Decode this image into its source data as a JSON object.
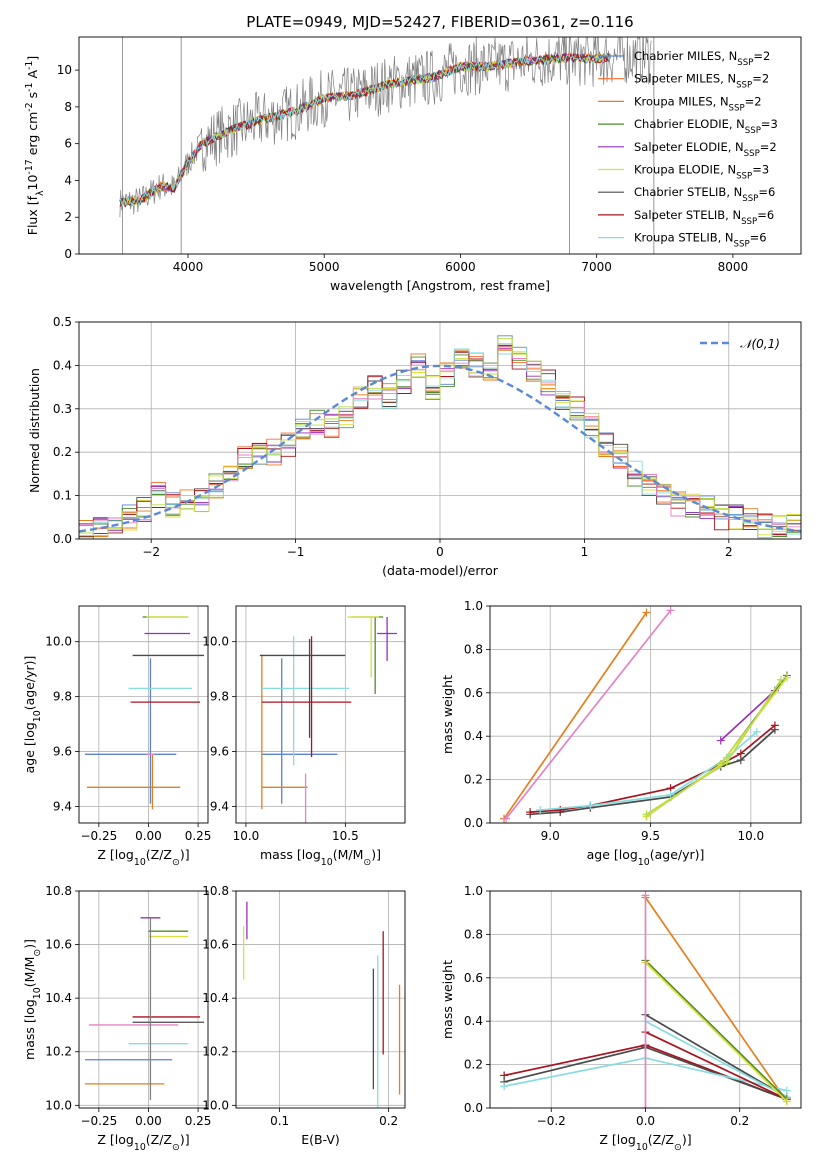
{
  "figure_title": "PLATE=0949, MJD=52427, FIBERID=0361, z=0.116",
  "colors": {
    "Chabrier MILES": "#5a83cc",
    "Salpeter MILES": "#ff6a2a",
    "Kroupa MILES": "#e57e1c",
    "Chabrier ELODIE": "#4f8a2d",
    "Salpeter ELODIE": "#9a2fb8",
    "Kroupa ELODIE": "#d9df3c",
    "Chabrier STELIB": "#4a4a4a",
    "Salpeter STELIB": "#a8141f",
    "Kroupa STELIB": "#86dcdf",
    "data_gray": "#808080",
    "normal_curve": "#5a8ad6",
    "extra_pink": "#e483c4",
    "extra_lime": "#b8dc4a"
  },
  "chart_data": [
    {
      "id": "spectrum",
      "type": "line",
      "xlabel": "wavelength [Angstrom, rest frame]",
      "ylabel": "Flux [f$_λ$10$^{-17}$ erg cm$^{-2}$ s$^{-1}$ A$^{-1}$]",
      "xlim": [
        3200,
        8500
      ],
      "ylim": [
        0,
        11.8
      ],
      "xticks": [
        4000,
        5000,
        6000,
        7000,
        8000
      ],
      "yticks": [
        0,
        2,
        4,
        6,
        8,
        10
      ],
      "grid": false,
      "legend_position": "top-right",
      "series_names": [
        "Chabrier MILES, N$_{SSP}$=2",
        "Salpeter MILES, N$_{SSP}$=2",
        "Kroupa MILES, N$_{SSP}$=2",
        "Chabrier ELODIE, N$_{SSP}$=3",
        "Salpeter ELODIE, N$_{SSP}$=2",
        "Kroupa ELODIE, N$_{SSP}$=3",
        "Chabrier STELIB, N$_{SSP}$=6",
        "Salpeter STELIB, N$_{SSP}$=6",
        "Kroupa STELIB, N$_{SSP}$=6"
      ],
      "series_keys": [
        "Chabrier MILES",
        "Salpeter MILES",
        "Kroupa MILES",
        "Chabrier ELODIE",
        "Salpeter ELODIE",
        "Kroupa ELODIE",
        "Chabrier STELIB",
        "Salpeter STELIB",
        "Kroupa STELIB"
      ],
      "continuum": {
        "x": [
          3500,
          3650,
          3800,
          3900,
          4000,
          4100,
          4300,
          4500,
          4800,
          5000,
          5200,
          5500,
          5800,
          6000,
          6200,
          6500,
          6800,
          7000,
          7200,
          7400
        ],
        "y": [
          2.8,
          2.9,
          3.7,
          3.6,
          5.0,
          6.0,
          6.7,
          7.2,
          7.8,
          8.5,
          8.6,
          9.3,
          9.6,
          10.2,
          10.2,
          10.5,
          10.7,
          10.6,
          10.8,
          10.8
        ]
      },
      "spike_x": [
        3520,
        3950,
        6800,
        7420
      ],
      "data_end_x": 7400
    },
    {
      "id": "residuals",
      "type": "histogram",
      "xlabel": "(data-model)/error",
      "ylabel": "Normed distribution",
      "xlim": [
        -2.5,
        2.5
      ],
      "ylim": [
        0,
        0.5
      ],
      "xticks": [
        -2,
        -1,
        0,
        1,
        2
      ],
      "yticks": [
        0.0,
        0.1,
        0.2,
        0.3,
        0.4,
        0.5
      ],
      "grid": true,
      "legend_position": "top-right",
      "reference_curve": {
        "name": "$\\mathcal{N}(0,1)$",
        "mean": 0,
        "sigma": 1
      },
      "bin_width": 0.1,
      "bin_start": -2.5,
      "base_profile": [
        0.03,
        0.035,
        0.04,
        0.05,
        0.07,
        0.1,
        0.08,
        0.09,
        0.09,
        0.12,
        0.15,
        0.19,
        0.2,
        0.2,
        0.22,
        0.25,
        0.27,
        0.26,
        0.28,
        0.32,
        0.35,
        0.33,
        0.36,
        0.4,
        0.35,
        0.38,
        0.41,
        0.4,
        0.38,
        0.44,
        0.42,
        0.38,
        0.36,
        0.32,
        0.3,
        0.26,
        0.22,
        0.19,
        0.15,
        0.12,
        0.1,
        0.08,
        0.08,
        0.07,
        0.05,
        0.05,
        0.04,
        0.03,
        0.03,
        0.03
      ]
    },
    {
      "id": "age_vs_Z",
      "type": "errorbar",
      "xlabel": "Z [log$_{10}$(Z/Z$_\\odot$)]",
      "ylabel": "age  [log$_{10}$(age/yr)]",
      "xlim": [
        -0.35,
        0.3
      ],
      "ylim": [
        9.34,
        10.13
      ],
      "xticks": [
        -0.25,
        0.0,
        0.25
      ],
      "yticks": [
        9.4,
        9.6,
        9.8,
        10.0
      ],
      "grid": true,
      "points": [
        {
          "color": "Chabrier MILES",
          "x": 0.01,
          "y": 9.59,
          "xerr": [
            0.33,
            0.13
          ],
          "yerr": [
            0.18,
            0.35
          ]
        },
        {
          "color": "Kroupa MILES",
          "x": 0.02,
          "y": 9.47,
          "xerr": [
            0.33,
            0.14
          ],
          "yerr": [
            0.08,
            0.12
          ]
        },
        {
          "color": "extra_pink",
          "x": 0.01,
          "y": 9.59,
          "xerr": [
            0.02,
            0.02
          ],
          "yerr": [
            0.0,
            0.0
          ]
        },
        {
          "color": "Kroupa STELIB",
          "x": 0.0,
          "y": 9.83,
          "xerr": [
            0.1,
            0.22
          ],
          "yerr": [
            0.0,
            0.0
          ]
        },
        {
          "color": "Salpeter STELIB",
          "x": 0.01,
          "y": 9.78,
          "xerr": [
            0.1,
            0.25
          ],
          "yerr": [
            0.0,
            0.0
          ]
        },
        {
          "color": "Chabrier STELIB",
          "x": 0.0,
          "y": 9.95,
          "xerr": [
            0.08,
            0.28
          ],
          "yerr": [
            0.0,
            0.0
          ]
        },
        {
          "color": "Salpeter ELODIE",
          "x": 0.01,
          "y": 10.03,
          "xerr": [
            0.03,
            0.2
          ],
          "yerr": [
            0.0,
            0.0
          ]
        },
        {
          "color": "Chabrier ELODIE",
          "x": 0.0,
          "y": 10.09,
          "xerr": [
            0.03,
            0.2
          ],
          "yerr": [
            0.0,
            0.0
          ]
        },
        {
          "color": "Kroupa ELODIE",
          "x": 0.02,
          "y": 10.09,
          "xerr": [
            0.03,
            0.18
          ],
          "yerr": [
            0.0,
            0.0
          ]
        }
      ]
    },
    {
      "id": "age_vs_mass",
      "type": "errorbar",
      "xlabel": "mass [log$_{10}$(M/M$_\\odot$)]",
      "ylabel": "",
      "xlim": [
        9.95,
        10.8
      ],
      "ylim": [
        9.34,
        10.13
      ],
      "xticks": [
        10.0,
        10.5
      ],
      "yticks": [
        9.4,
        9.6,
        9.8,
        10.0
      ],
      "grid": true,
      "points": [
        {
          "color": "Chabrier MILES",
          "x": 10.18,
          "y": 9.59,
          "xerr": [
            0.1,
            0.28
          ],
          "yerr": [
            0.18,
            0.35
          ]
        },
        {
          "color": "Kroupa MILES",
          "x": 10.08,
          "y": 9.47,
          "xerr": [
            0.0,
            0.23
          ],
          "yerr": [
            0.08,
            0.48
          ]
        },
        {
          "color": "Kroupa STELIB",
          "x": 10.24,
          "y": 9.83,
          "xerr": [
            0.16,
            0.28
          ],
          "yerr": [
            0.28,
            0.19
          ]
        },
        {
          "color": "extra_pink",
          "x": 10.3,
          "y": 9.52,
          "xerr": [
            0.0,
            0.0
          ],
          "yerr": [
            0.18,
            0.0
          ]
        },
        {
          "color": "Salpeter STELIB",
          "x": 10.33,
          "y": 9.78,
          "xerr": [
            0.25,
            0.2
          ],
          "yerr": [
            0.2,
            0.24
          ]
        },
        {
          "color": "Chabrier STELIB",
          "x": 10.32,
          "y": 9.95,
          "xerr": [
            0.25,
            0.18
          ],
          "yerr": [
            0.3,
            0.06
          ]
        },
        {
          "color": "Chabrier ELODIE",
          "x": 10.65,
          "y": 10.09,
          "xerr": [
            0.12,
            0.04
          ],
          "yerr": [
            0.28,
            0.0
          ]
        },
        {
          "color": "Kroupa ELODIE",
          "x": 10.63,
          "y": 10.09,
          "xerr": [
            0.12,
            0.04
          ],
          "yerr": [
            0.22,
            0.0
          ]
        },
        {
          "color": "Salpeter ELODIE",
          "x": 10.71,
          "y": 10.03,
          "xerr": [
            0.05,
            0.05
          ],
          "yerr": [
            0.1,
            0.06
          ]
        }
      ]
    },
    {
      "id": "weight_vs_age",
      "type": "line",
      "xlabel": "age  [log$_{10}$(age/yr)]",
      "ylabel": "mass weight",
      "xlim": [
        8.7,
        10.25
      ],
      "ylim": [
        0.0,
        1.0
      ],
      "xticks": [
        9.0,
        9.5,
        10.0
      ],
      "yticks": [
        0.0,
        0.2,
        0.4,
        0.6,
        0.8,
        1.0
      ],
      "grid": true,
      "series": [
        {
          "color": "Kroupa MILES",
          "x": [
            8.77,
            9.48
          ],
          "y": [
            0.02,
            0.97
          ]
        },
        {
          "color": "extra_pink",
          "x": [
            8.78,
            9.6
          ],
          "y": [
            0.02,
            0.98
          ]
        },
        {
          "color": "Chabrier STELIB",
          "x": [
            8.9,
            9.05,
            9.2,
            9.6,
            9.85,
            9.95,
            10.12
          ],
          "y": [
            0.04,
            0.05,
            0.07,
            0.12,
            0.26,
            0.29,
            0.43
          ]
        },
        {
          "color": "Salpeter STELIB",
          "x": [
            8.9,
            9.05,
            9.2,
            9.6,
            9.85,
            9.95,
            10.12
          ],
          "y": [
            0.05,
            0.06,
            0.08,
            0.16,
            0.27,
            0.32,
            0.45
          ]
        },
        {
          "color": "Kroupa STELIB",
          "x": [
            8.95,
            9.2,
            9.6,
            9.88,
            10.03
          ],
          "y": [
            0.06,
            0.08,
            0.13,
            0.3,
            0.42
          ]
        },
        {
          "color": "Salpeter ELODIE",
          "x": [
            9.85,
            10.12
          ],
          "y": [
            0.38,
            0.61
          ]
        },
        {
          "color": "Chabrier ELODIE",
          "x": [
            9.48,
            9.85,
            10.18
          ],
          "y": [
            0.03,
            0.27,
            0.68
          ]
        },
        {
          "color": "Kroupa ELODIE",
          "x": [
            9.48,
            9.85,
            10.18
          ],
          "y": [
            0.03,
            0.27,
            0.67
          ]
        },
        {
          "color": "extra_lime",
          "x": [
            9.48,
            9.88,
            10.15
          ],
          "y": [
            0.04,
            0.28,
            0.66
          ]
        }
      ]
    },
    {
      "id": "mass_vs_Z",
      "type": "errorbar",
      "xlabel": "Z [log$_{10}$(Z/Z$_\\odot$)]",
      "ylabel": "mass [log$_{10}$(M/M$_\\odot$)]",
      "xlim": [
        -0.35,
        0.3
      ],
      "ylim": [
        9.99,
        10.8
      ],
      "xticks": [
        -0.25,
        0.0,
        0.25
      ],
      "yticks": [
        10.0,
        10.2,
        10.4,
        10.6,
        10.8
      ],
      "grid": true,
      "points": [
        {
          "color": "Kroupa MILES",
          "x": -0.12,
          "y": 10.08,
          "xerr": [
            0.2,
            0.2
          ],
          "yerr": [
            0.0,
            0.0
          ]
        },
        {
          "color": "Chabrier MILES",
          "x": -0.1,
          "y": 10.17,
          "xerr": [
            0.22,
            0.22
          ],
          "yerr": [
            0.0,
            0.0
          ]
        },
        {
          "color": "Kroupa STELIB",
          "x": 0.05,
          "y": 10.23,
          "xerr": [
            0.15,
            0.15
          ],
          "yerr": [
            0.0,
            0.0
          ]
        },
        {
          "color": "extra_pink",
          "x": -0.05,
          "y": 10.3,
          "xerr": [
            0.25,
            0.2
          ],
          "yerr": [
            0.0,
            0.0
          ]
        },
        {
          "color": "Chabrier STELIB",
          "x": 0.1,
          "y": 10.31,
          "xerr": [
            0.18,
            0.18
          ],
          "yerr": [
            0.0,
            0.0
          ]
        },
        {
          "color": "Salpeter STELIB",
          "x": 0.09,
          "y": 10.33,
          "xerr": [
            0.17,
            0.17
          ],
          "yerr": [
            0.0,
            0.0
          ]
        },
        {
          "color": "Kroupa ELODIE",
          "x": 0.1,
          "y": 10.63,
          "xerr": [
            0.1,
            0.1
          ],
          "yerr": [
            0.0,
            0.0
          ]
        },
        {
          "color": "Chabrier ELODIE",
          "x": 0.1,
          "y": 10.65,
          "xerr": [
            0.1,
            0.1
          ],
          "yerr": [
            0.0,
            0.0
          ]
        },
        {
          "color": "Salpeter ELODIE",
          "x": 0.01,
          "y": 10.7,
          "xerr": [
            0.05,
            0.05
          ],
          "yerr": [
            0.0,
            0.0
          ]
        },
        {
          "color": "data_gray",
          "x": 0.01,
          "y": 10.3,
          "xerr": [
            0.0,
            0.0
          ],
          "yerr": [
            0.28,
            0.4
          ]
        }
      ]
    },
    {
      "id": "mass_vs_ebv",
      "type": "errorbar",
      "xlabel": "E(B-V)",
      "ylabel": "",
      "xlim": [
        0.06,
        0.215
      ],
      "ylim": [
        9.99,
        10.8
      ],
      "xticks": [
        0.1,
        0.2
      ],
      "yticks": [
        10.0,
        10.2,
        10.4,
        10.6,
        10.8
      ],
      "grid": true,
      "points": [
        {
          "color": "Kroupa ELODIE",
          "x": 0.067,
          "y": 10.57,
          "yerr": [
            0.1,
            0.1
          ]
        },
        {
          "color": "Salpeter ELODIE",
          "x": 0.07,
          "y": 10.69,
          "yerr": [
            0.07,
            0.07
          ]
        },
        {
          "color": "Chabrier STELIB",
          "x": 0.186,
          "y": 10.29,
          "yerr": [
            0.23,
            0.22
          ]
        },
        {
          "color": "Kroupa STELIB",
          "x": 0.19,
          "y": 10.26,
          "yerr": [
            0.28,
            0.3
          ]
        },
        {
          "color": "Salpeter STELIB",
          "x": 0.195,
          "y": 10.37,
          "yerr": [
            0.18,
            0.28
          ]
        },
        {
          "color": "Kroupa MILES",
          "x": 0.21,
          "y": 10.24,
          "yerr": [
            0.2,
            0.21
          ]
        }
      ]
    },
    {
      "id": "weight_vs_Z",
      "type": "line",
      "xlabel": "Z [log$_{10}$(Z/Z$_\\odot$)]",
      "ylabel": "mass weight",
      "xlim": [
        -0.33,
        0.33
      ],
      "ylim": [
        0.0,
        1.0
      ],
      "xticks": [
        -0.2,
        0.0,
        0.2
      ],
      "yticks": [
        0.0,
        0.2,
        0.4,
        0.6,
        0.8,
        1.0
      ],
      "grid": true,
      "series": [
        {
          "color": "Kroupa MILES",
          "x": [
            0.0,
            0.3
          ],
          "y": [
            0.97,
            0.03
          ]
        },
        {
          "color": "Salpeter STELIB",
          "x": [
            -0.3,
            0.0,
            0.3
          ],
          "y": [
            0.15,
            0.29,
            0.04
          ]
        },
        {
          "color": "Chabrier STELIB",
          "x": [
            -0.3,
            0.0,
            0.3
          ],
          "y": [
            0.12,
            0.28,
            0.04
          ]
        },
        {
          "color": "Kroupa STELIB",
          "x": [
            -0.3,
            0.0,
            0.3
          ],
          "y": [
            0.1,
            0.23,
            0.08
          ]
        },
        {
          "color": "Chabrier STELIB",
          "x": [
            0.0,
            0.3
          ],
          "y": [
            0.43,
            0.05
          ]
        },
        {
          "color": "Kroupa STELIB",
          "x": [
            0.0,
            0.3
          ],
          "y": [
            0.4,
            0.05
          ]
        },
        {
          "color": "Salpeter STELIB",
          "x": [
            0.0,
            0.3
          ],
          "y": [
            0.35,
            0.04
          ]
        },
        {
          "color": "Chabrier ELODIE",
          "x": [
            0.0,
            0.3
          ],
          "y": [
            0.68,
            0.04
          ]
        },
        {
          "color": "Kroupa ELODIE",
          "x": [
            0.0,
            0.3
          ],
          "y": [
            0.67,
            0.03
          ]
        },
        {
          "color": "extra_pink",
          "x": [
            0.0,
            0.0
          ],
          "y": [
            0.0,
            0.98
          ]
        }
      ]
    }
  ]
}
